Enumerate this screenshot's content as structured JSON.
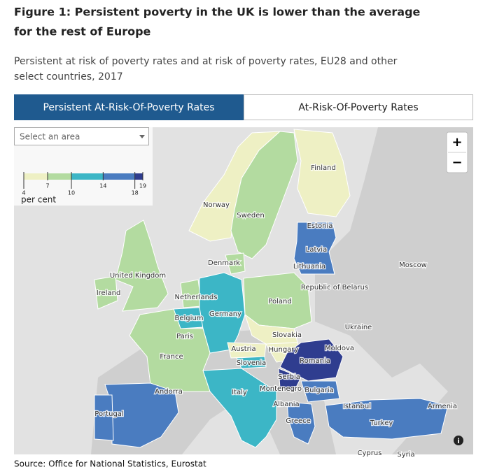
{
  "header": {
    "title": [
      "Figure 1: Persistent poverty in the UK is lower than the average",
      "for the rest of Europe"
    ],
    "subtitle": [
      "Persistent at risk of poverty rates and at risk of poverty rates, EU28 and other",
      "select countries, 2017"
    ]
  },
  "tabs": [
    "Persistent At-Risk-Of-Poverty Rates",
    "At-Risk-Of-Poverty Rates"
  ],
  "select": "Select an area",
  "zoom": [
    "+",
    "−"
  ],
  "legend": {
    "ticks": [
      4,
      7,
      10,
      14,
      18,
      19
    ],
    "colors": [
      "#eef0c4",
      "#b3dba0",
      "#3cb6c6",
      "#4a7cc0",
      "#2f3d8f"
    ],
    "unit": "per cent"
  },
  "labels": [
    "Finland",
    "Norway",
    "Sweden",
    "Estonia",
    "Latvia",
    "Lithuania",
    "Moscow",
    "Denmark",
    "United Kingdom",
    "Ireland",
    "Republic of Belarus",
    "Netherlands",
    "Poland",
    "Germany",
    "Belgium",
    "Ukraine",
    "Paris",
    "Slovakia",
    "Moldova",
    "Austria",
    "Hungary",
    "France",
    "Slovenia",
    "Romania",
    "Serbia",
    "Andorra",
    "Montenegro",
    "Bulgaria",
    "Italy",
    "Armenia",
    "Albania",
    "Istanbul",
    "Portugal",
    "Greece",
    "Turkey",
    "Cyprus",
    "Syria"
  ],
  "source": "Source: Office for National Statistics, Eurostat"
}
